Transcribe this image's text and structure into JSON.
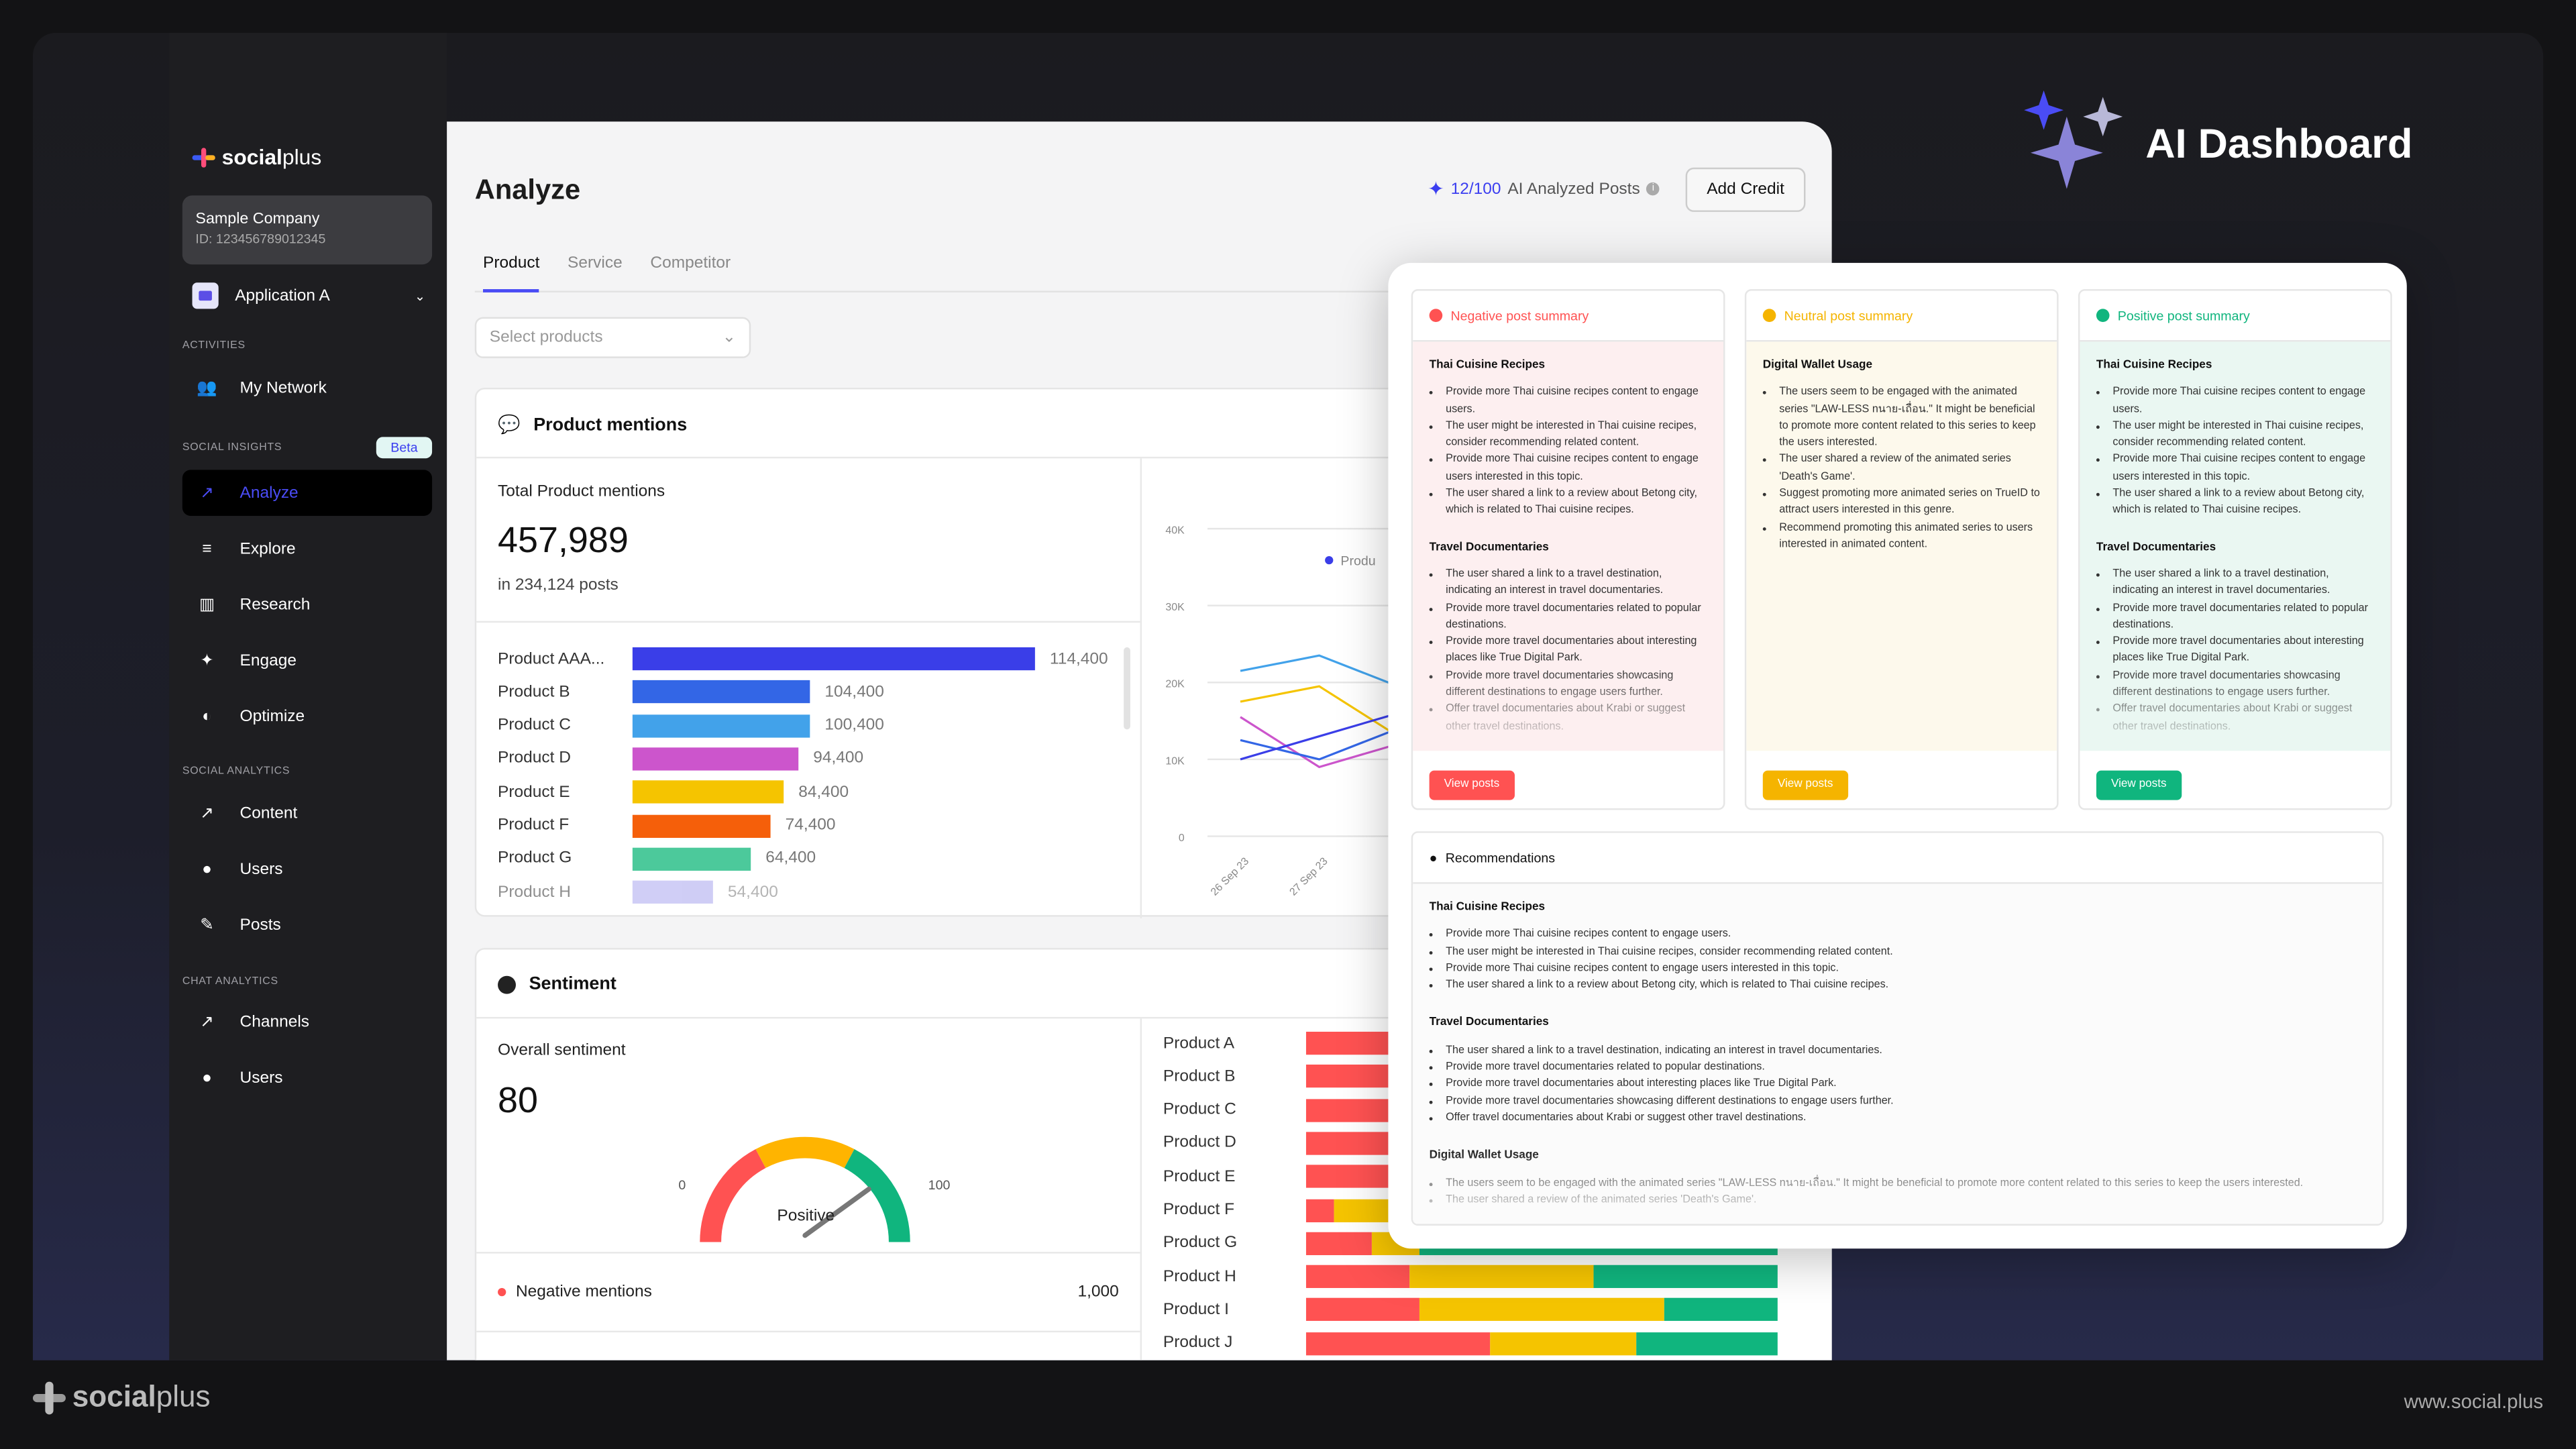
{
  "brand": {
    "name_bold": "social",
    "name_light": "plus",
    "url": "www.social.plus"
  },
  "hero": {
    "title": "AI Dashboard"
  },
  "sidebar": {
    "company": {
      "name": "Sample Company",
      "id": "ID: 123456789012345"
    },
    "app": "Application A",
    "sections": {
      "activities": "ACTIVITIES",
      "social_insights": "SOCIAL INSIGHTS",
      "social_analytics": "SOCIAL ANALYTICS",
      "chat_analytics": "CHAT ANALYTICS"
    },
    "beta": "Beta",
    "items": [
      {
        "label": "My Network",
        "icon": "users-icon"
      },
      {
        "label": "Analyze",
        "icon": "chart-line-icon",
        "active": true
      },
      {
        "label": "Explore",
        "icon": "explore-icon"
      },
      {
        "label": "Research",
        "icon": "book-icon"
      },
      {
        "label": "Engage",
        "icon": "engage-icon"
      },
      {
        "label": "Optimize",
        "icon": "optimize-icon"
      },
      {
        "label": "Content",
        "icon": "chart-icon"
      },
      {
        "label": "Users",
        "icon": "user-icon"
      },
      {
        "label": "Posts",
        "icon": "posts-icon"
      },
      {
        "label": "Channels",
        "icon": "chart-icon"
      },
      {
        "label": "Users",
        "icon": "user-icon"
      }
    ]
  },
  "header": {
    "title": "Analyze",
    "credits_used": "12/100",
    "credits_label": "AI Analyzed Posts",
    "add_credit": "Add Credit"
  },
  "tabs": [
    "Product",
    "Service",
    "Competitor"
  ],
  "select": {
    "placeholder": "Select products"
  },
  "mentions": {
    "title": "Product mentions",
    "total_label": "Total Product mentions",
    "total": "457,989",
    "posts": "in 234,124 posts",
    "bars": [
      {
        "name": "Product AAA...",
        "value": "114,400",
        "color": "#3a3ee8"
      },
      {
        "name": "Product B",
        "value": "104,400",
        "color": "#3366e6"
      },
      {
        "name": "Product C",
        "value": "100,400",
        "color": "#42a2ea"
      },
      {
        "name": "Product D",
        "value": "94,400",
        "color": "#cc55cc"
      },
      {
        "name": "Product E",
        "value": "84,400",
        "color": "#f5c400"
      },
      {
        "name": "Product F",
        "value": "74,400",
        "color": "#f55f0a"
      },
      {
        "name": "Product G",
        "value": "64,400",
        "color": "#4cc99b"
      },
      {
        "name": "Product H",
        "value": "54,400",
        "color": "#a9a6ee"
      }
    ],
    "line_chart": {
      "legend": "Produ",
      "y_ticks": [
        "40K",
        "30K",
        "20K",
        "10K",
        "0"
      ],
      "x_ticks": [
        "26 Sep 23",
        "27 Sep 23"
      ],
      "series": [
        {
          "color": "#42a2ea",
          "values": [
            21500,
            23500,
            19500
          ]
        },
        {
          "color": "#f5c400",
          "values": [
            17500,
            19500,
            13000
          ]
        },
        {
          "color": "#cc55cc",
          "values": [
            15500,
            9000,
            12000
          ]
        },
        {
          "color": "#3366e6",
          "values": [
            12500,
            10000,
            14000
          ]
        },
        {
          "color": "#3a3ee8",
          "values": [
            10000,
            13000,
            16000
          ]
        }
      ]
    }
  },
  "sentiment": {
    "title": "Sentiment",
    "overall_label": "Overall sentiment",
    "score": "80",
    "gauge_min": "0",
    "gauge_max": "100",
    "gauge_value": 80,
    "gauge_label": "Positive",
    "negative_label": "Negative mentions",
    "negative_value": "1,000",
    "colors": {
      "negative": "#ff5252",
      "neutral": "#f5c400",
      "positive": "#10b57e"
    },
    "products": [
      {
        "name": "Product A",
        "neg": 40,
        "neu": 30,
        "pos": 30
      },
      {
        "name": "Product B",
        "neg": 40,
        "neu": 30,
        "pos": 30
      },
      {
        "name": "Product C",
        "neg": 40,
        "neu": 30,
        "pos": 30
      },
      {
        "name": "Product D",
        "neg": 40,
        "neu": 30,
        "pos": 30
      },
      {
        "name": "Product E",
        "neg": 40,
        "neu": 30,
        "pos": 30
      },
      {
        "name": "Product F",
        "neg": 6,
        "neu": 30,
        "pos": 64
      },
      {
        "name": "Product G",
        "neg": 14,
        "neu": 10,
        "pos": 76
      },
      {
        "name": "Product H",
        "neg": 22,
        "neu": 39,
        "pos": 39
      },
      {
        "name": "Product I",
        "neg": 24,
        "neu": 52,
        "pos": 24
      },
      {
        "name": "Product J",
        "neg": 39,
        "neu": 31,
        "pos": 30
      }
    ]
  },
  "summaries": [
    {
      "title": "Negative post summary",
      "color": "#ff5252",
      "bg": "#fdeff0",
      "button": "View posts",
      "groups": [
        {
          "heading": "Thai Cuisine Recipes",
          "items": [
            "Provide more Thai cuisine recipes content to engage users.",
            "The user might be interested in Thai cuisine recipes, consider recommending related content.",
            "Provide more Thai cuisine recipes content to engage users interested in this topic.",
            "The user shared a link to a review about Betong city, which is related to Thai cuisine recipes."
          ]
        },
        {
          "heading": "Travel Documentaries",
          "items": [
            "The user shared a link to a travel destination, indicating an interest in travel documentaries.",
            "Provide more travel documentaries related to popular destinations.",
            "Provide more travel documentaries about interesting places like True Digital Park.",
            "Provide more travel documentaries showcasing different destinations to engage users further.",
            "Offer travel documentaries about Krabi or suggest other travel destinations."
          ]
        }
      ]
    },
    {
      "title": "Neutral post summary",
      "color": "#f5b400",
      "bg": "#fdf9ec",
      "button": "View posts",
      "groups": [
        {
          "heading": "Digital Wallet Usage",
          "items": [
            "The users seem to be engaged with the animated series \"LAW-LESS nนาย-เถื่อน.\" It might be beneficial to promote more content related to this series to keep the users interested.",
            "The user shared a review of the animated series 'Death's Game'.",
            "Suggest promoting more animated series on TrueID to attract users interested in this genre.",
            "Recommend promoting this animated series to users interested in animated content."
          ]
        }
      ]
    },
    {
      "title": "Positive post summary",
      "color": "#10b57e",
      "bg": "#eaf7f2",
      "button": "View posts",
      "groups": [
        {
          "heading": "Thai Cuisine Recipes",
          "items": [
            "Provide more Thai cuisine recipes content to engage users.",
            "The user might be interested in Thai cuisine recipes, consider recommending related content.",
            "Provide more Thai cuisine recipes content to engage users interested in this topic.",
            "The user shared a link to a review about Betong city, which is related to Thai cuisine recipes."
          ]
        },
        {
          "heading": "Travel Documentaries",
          "items": [
            "The user shared a link to a travel destination, indicating an interest in travel documentaries.",
            "Provide more travel documentaries related to popular destinations.",
            "Provide more travel documentaries about interesting places like True Digital Park.",
            "Provide more travel documentaries showcasing different destinations to engage users further.",
            "Offer travel documentaries about Krabi or suggest other travel destinations."
          ]
        }
      ]
    }
  ],
  "recommendations": {
    "title": "Recommendations",
    "groups": [
      {
        "heading": "Thai Cuisine Recipes",
        "items": [
          "Provide more Thai cuisine recipes content to engage users.",
          "The user might be interested in Thai cuisine recipes, consider recommending related content.",
          "Provide more Thai cuisine recipes content to engage users interested in this topic.",
          "The user shared a link to a review about Betong city, which is related to Thai cuisine recipes."
        ]
      },
      {
        "heading": "Travel Documentaries",
        "items": [
          "The user shared a link to a travel destination, indicating an interest in travel documentaries.",
          "Provide more travel documentaries related to popular destinations.",
          "Provide more travel documentaries about interesting places like True Digital Park.",
          "Provide more travel documentaries showcasing different destinations to engage users further.",
          "Offer travel documentaries about Krabi or suggest other travel destinations."
        ]
      },
      {
        "heading": "Digital Wallet Usage",
        "items": [
          "The users seem to be engaged with the animated series \"LAW-LESS nนาย-เถื่อน.\" It might be beneficial to promote more content related to this series to keep the users interested.",
          "The user shared a review of the animated series 'Death's Game'."
        ]
      }
    ]
  }
}
